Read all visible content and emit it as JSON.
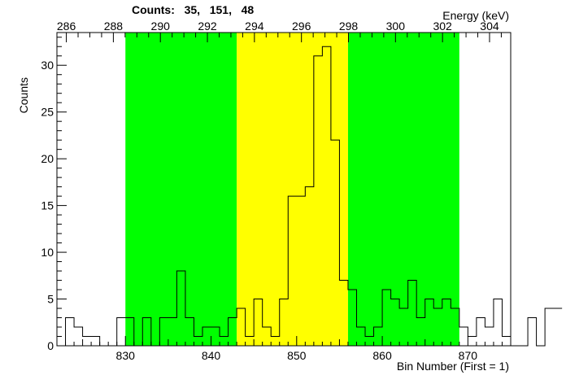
{
  "header": {
    "counts_label": "Counts:",
    "counts_values": [
      "35",
      "151",
      "48"
    ]
  },
  "chart_data": {
    "type": "bar",
    "histogram": true,
    "xlabel": "Bin Number (First = 1)",
    "ylabel": "Counts",
    "top_axis_label": "Energy (keV)",
    "xlim": [
      822,
      875
    ],
    "ylim": [
      0,
      33.5
    ],
    "x_ticks": [
      830,
      840,
      850,
      860,
      870
    ],
    "y_ticks": [
      0,
      5,
      10,
      15,
      20,
      25,
      30
    ],
    "top_ticks": [
      286,
      288,
      290,
      292,
      294,
      296,
      298,
      300,
      302,
      304
    ],
    "top_axis_range": [
      285.6,
      304.9
    ],
    "regions": [
      {
        "from": 830,
        "to": 843,
        "color": "#00ff00"
      },
      {
        "from": 843,
        "to": 856,
        "color": "#ffff00"
      },
      {
        "from": 856,
        "to": 869,
        "color": "#00ff00"
      }
    ],
    "bin_start": 822,
    "bin_width": 1,
    "values": [
      0,
      3,
      2,
      1,
      1,
      0,
      0,
      3,
      3,
      0,
      3,
      0,
      3,
      3,
      8,
      3,
      1,
      2,
      2,
      1,
      3,
      4,
      1,
      5,
      2,
      1,
      5,
      16,
      16,
      17,
      31,
      32,
      22,
      7,
      6,
      2,
      1,
      2,
      6,
      5,
      4,
      7,
      3,
      5,
      4,
      5,
      4,
      2,
      1,
      3,
      2,
      5,
      1,
      0,
      0,
      3,
      0,
      4,
      4
    ],
    "line_color": "#000000"
  }
}
